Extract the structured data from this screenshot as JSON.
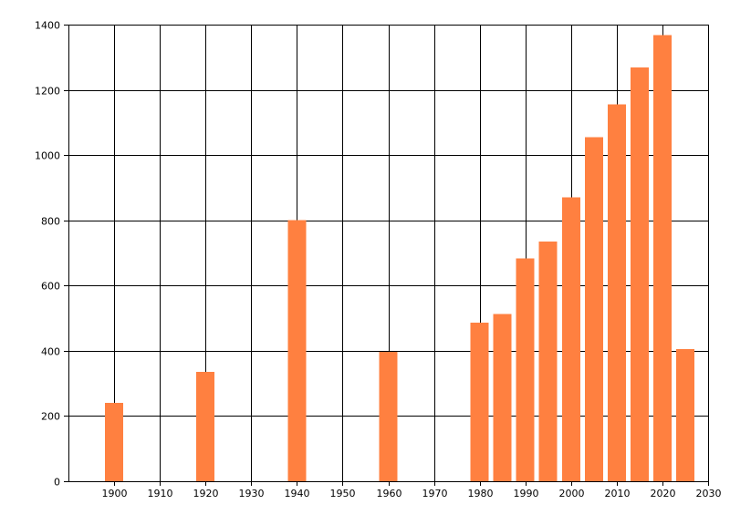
{
  "chart_data": {
    "type": "bar",
    "title": "",
    "xlabel": "",
    "ylabel": "",
    "xlim": [
      1890,
      2030
    ],
    "ylim": [
      0,
      1400
    ],
    "x_ticks": [
      "1900",
      "1910",
      "1920",
      "1930",
      "1940",
      "1950",
      "1960",
      "1970",
      "1980",
      "1990",
      "2000",
      "2010",
      "2020",
      "2030"
    ],
    "y_ticks": [
      "0",
      "200",
      "400",
      "600",
      "800",
      "1000",
      "1200",
      "1400"
    ],
    "grid": true,
    "bar_color": "#FF8040",
    "series": [
      {
        "x": [
          1900,
          1920,
          1940,
          1960,
          1980,
          1985,
          1990,
          1995,
          2000,
          2005,
          2010,
          2015,
          2020,
          2025
        ],
        "values": [
          240,
          335,
          800,
          397,
          486,
          513,
          683,
          735,
          870,
          1055,
          1155,
          1268,
          1368,
          405
        ]
      }
    ]
  }
}
